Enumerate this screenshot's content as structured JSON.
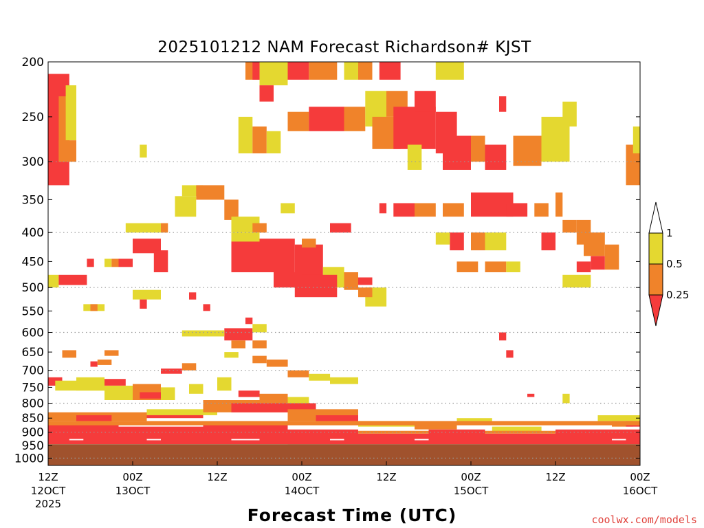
{
  "colors": {
    "ri_lt_025": "#f53b3b",
    "ri_025_05": "#f0832a",
    "ri_05_1": "#e4d830",
    "ground": "#a0522d",
    "grid": "#9a9a9a",
    "credit": "#e0403a"
  },
  "credit": "coolwx.com/models",
  "chart_data": {
    "type": "heatmap",
    "title": "2025101212 NAM Forecast Richardson# KJST",
    "xlabel": "Forecast Time (UTC)",
    "ylabel": "",
    "y_scale": "log",
    "y_inverted": true,
    "ylim": [
      1030,
      200
    ],
    "xlim": [
      0,
      84
    ],
    "grid": "dotted horizontal at pressure levels",
    "x_ticks": [
      {
        "hour": 0,
        "label": "12Z",
        "sub": "12OCT",
        "sub2": "2025"
      },
      {
        "hour": 12,
        "label": "00Z",
        "sub": "13OCT",
        "sub2": ""
      },
      {
        "hour": 24,
        "label": "12Z",
        "sub": "",
        "sub2": ""
      },
      {
        "hour": 36,
        "label": "00Z",
        "sub": "14OCT",
        "sub2": ""
      },
      {
        "hour": 48,
        "label": "12Z",
        "sub": "",
        "sub2": ""
      },
      {
        "hour": 60,
        "label": "00Z",
        "sub": "15OCT",
        "sub2": ""
      },
      {
        "hour": 72,
        "label": "12Z",
        "sub": "",
        "sub2": ""
      },
      {
        "hour": 84,
        "label": "00Z",
        "sub": "16OCT",
        "sub2": ""
      }
    ],
    "y_ticks": [
      "200",
      "250",
      "300",
      "350",
      "400",
      "450",
      "500",
      "550",
      "600",
      "650",
      "700",
      "750",
      "800",
      "850",
      "900",
      "950",
      "1000"
    ],
    "legend": {
      "placement": "right",
      "labels": [
        "1",
        "0.5",
        "0.25"
      ],
      "categories": [
        "Ri < 0.25",
        "0.25 - 0.5",
        "0.5 - 1"
      ]
    },
    "ground_below_hpa": 945,
    "cells": [
      {
        "h0": 0,
        "h1": 3,
        "p0": 210,
        "p1": 330,
        "c": "r"
      },
      {
        "h0": 1.5,
        "h1": 3,
        "p0": 230,
        "p1": 300,
        "c": "o"
      },
      {
        "h0": 2.5,
        "h1": 4,
        "p0": 220,
        "p1": 275,
        "c": "y"
      },
      {
        "h0": 1.5,
        "h1": 4,
        "p0": 275,
        "p1": 300,
        "c": "o"
      },
      {
        "h0": 13,
        "h1": 14,
        "p0": 280,
        "p1": 295,
        "c": "y"
      },
      {
        "h0": 28,
        "h1": 31,
        "p0": 200,
        "p1": 215,
        "c": "o"
      },
      {
        "h0": 29,
        "h1": 30,
        "p0": 200,
        "p1": 215,
        "c": "r"
      },
      {
        "h0": 30,
        "h1": 34,
        "p0": 200,
        "p1": 220,
        "c": "y"
      },
      {
        "h0": 34,
        "h1": 37,
        "p0": 200,
        "p1": 215,
        "c": "r"
      },
      {
        "h0": 37,
        "h1": 41,
        "p0": 200,
        "p1": 215,
        "c": "o"
      },
      {
        "h0": 30,
        "h1": 32,
        "p0": 220,
        "p1": 235,
        "c": "r"
      },
      {
        "h0": 42,
        "h1": 44,
        "p0": 200,
        "p1": 215,
        "c": "y"
      },
      {
        "h0": 44,
        "h1": 46,
        "p0": 200,
        "p1": 215,
        "c": "o"
      },
      {
        "h0": 47,
        "h1": 50,
        "p0": 200,
        "p1": 215,
        "c": "r"
      },
      {
        "h0": 55,
        "h1": 59,
        "p0": 200,
        "p1": 215,
        "c": "y"
      },
      {
        "h0": 34,
        "h1": 37,
        "p0": 245,
        "p1": 265,
        "c": "o"
      },
      {
        "h0": 37,
        "h1": 42,
        "p0": 240,
        "p1": 265,
        "c": "r"
      },
      {
        "h0": 42,
        "h1": 45,
        "p0": 240,
        "p1": 265,
        "c": "o"
      },
      {
        "h0": 45,
        "h1": 48,
        "p0": 225,
        "p1": 260,
        "c": "y"
      },
      {
        "h0": 46,
        "h1": 50,
        "p0": 250,
        "p1": 285,
        "c": "o"
      },
      {
        "h0": 48,
        "h1": 51,
        "p0": 225,
        "p1": 250,
        "c": "o"
      },
      {
        "h0": 49,
        "h1": 55,
        "p0": 240,
        "p1": 285,
        "c": "r"
      },
      {
        "h0": 55,
        "h1": 58,
        "p0": 245,
        "p1": 290,
        "c": "r"
      },
      {
        "h0": 52,
        "h1": 55,
        "p0": 225,
        "p1": 245,
        "c": "r"
      },
      {
        "h0": 51,
        "h1": 53,
        "p0": 280,
        "p1": 310,
        "c": "y"
      },
      {
        "h0": 27,
        "h1": 29,
        "p0": 250,
        "p1": 290,
        "c": "y"
      },
      {
        "h0": 29,
        "h1": 31,
        "p0": 260,
        "p1": 290,
        "c": "o"
      },
      {
        "h0": 31,
        "h1": 33,
        "p0": 265,
        "p1": 290,
        "c": "y"
      },
      {
        "h0": 56,
        "h1": 60,
        "p0": 270,
        "p1": 310,
        "c": "r"
      },
      {
        "h0": 60,
        "h1": 62,
        "p0": 270,
        "p1": 300,
        "c": "o"
      },
      {
        "h0": 62,
        "h1": 65,
        "p0": 280,
        "p1": 310,
        "c": "r"
      },
      {
        "h0": 64,
        "h1": 65,
        "p0": 230,
        "p1": 245,
        "c": "r"
      },
      {
        "h0": 66,
        "h1": 70,
        "p0": 270,
        "p1": 305,
        "c": "o"
      },
      {
        "h0": 70,
        "h1": 74,
        "p0": 250,
        "p1": 300,
        "c": "y"
      },
      {
        "h0": 73,
        "h1": 75,
        "p0": 235,
        "p1": 260,
        "c": "y"
      },
      {
        "h0": 82,
        "h1": 84,
        "p0": 280,
        "p1": 330,
        "c": "o"
      },
      {
        "h0": 83,
        "h1": 84,
        "p0": 260,
        "p1": 290,
        "c": "y"
      },
      {
        "h0": 19,
        "h1": 22,
        "p0": 330,
        "p1": 345,
        "c": "y"
      },
      {
        "h0": 21,
        "h1": 25,
        "p0": 330,
        "p1": 350,
        "c": "o"
      },
      {
        "h0": 18,
        "h1": 21,
        "p0": 345,
        "p1": 375,
        "c": "y"
      },
      {
        "h0": 25,
        "h1": 27,
        "p0": 350,
        "p1": 380,
        "c": "o"
      },
      {
        "h0": 26,
        "h1": 30,
        "p0": 375,
        "p1": 400,
        "c": "y"
      },
      {
        "h0": 29,
        "h1": 31,
        "p0": 385,
        "p1": 400,
        "c": "o"
      },
      {
        "h0": 33,
        "h1": 35,
        "p0": 355,
        "p1": 370,
        "c": "y"
      },
      {
        "h0": 40,
        "h1": 43,
        "p0": 385,
        "p1": 400,
        "c": "r"
      },
      {
        "h0": 47,
        "h1": 48,
        "p0": 355,
        "p1": 370,
        "c": "r"
      },
      {
        "h0": 49,
        "h1": 52,
        "p0": 355,
        "p1": 375,
        "c": "r"
      },
      {
        "h0": 52,
        "h1": 55,
        "p0": 355,
        "p1": 375,
        "c": "o"
      },
      {
        "h0": 56,
        "h1": 59,
        "p0": 355,
        "p1": 375,
        "c": "o"
      },
      {
        "h0": 60,
        "h1": 66,
        "p0": 340,
        "p1": 375,
        "c": "r"
      },
      {
        "h0": 65,
        "h1": 68,
        "p0": 355,
        "p1": 375,
        "c": "r"
      },
      {
        "h0": 69,
        "h1": 71,
        "p0": 355,
        "p1": 375,
        "c": "o"
      },
      {
        "h0": 72,
        "h1": 73,
        "p0": 340,
        "p1": 375,
        "c": "o"
      },
      {
        "h0": 11,
        "h1": 16,
        "p0": 385,
        "p1": 400,
        "c": "y"
      },
      {
        "h0": 16,
        "h1": 17,
        "p0": 385,
        "p1": 400,
        "c": "o"
      },
      {
        "h0": 12,
        "h1": 16,
        "p0": 410,
        "p1": 435,
        "c": "r"
      },
      {
        "h0": 15,
        "h1": 17,
        "p0": 430,
        "p1": 470,
        "c": "r"
      },
      {
        "h0": 26,
        "h1": 35,
        "p0": 410,
        "p1": 470,
        "c": "r"
      },
      {
        "h0": 35,
        "h1": 39,
        "p0": 420,
        "p1": 480,
        "c": "r"
      },
      {
        "h0": 26,
        "h1": 30,
        "p0": 400,
        "p1": 415,
        "c": "y"
      },
      {
        "h0": 36,
        "h1": 38,
        "p0": 410,
        "p1": 425,
        "c": "o"
      },
      {
        "h0": 39,
        "h1": 42,
        "p0": 460,
        "p1": 500,
        "c": "y"
      },
      {
        "h0": 42,
        "h1": 44,
        "p0": 470,
        "p1": 505,
        "c": "o"
      },
      {
        "h0": 35,
        "h1": 41,
        "p0": 475,
        "p1": 520,
        "c": "r"
      },
      {
        "h0": 32,
        "h1": 36,
        "p0": 470,
        "p1": 500,
        "c": "r"
      },
      {
        "h0": 44,
        "h1": 46,
        "p0": 480,
        "p1": 495,
        "c": "r"
      },
      {
        "h0": 45,
        "h1": 48,
        "p0": 500,
        "p1": 540,
        "c": "y"
      },
      {
        "h0": 44,
        "h1": 46,
        "p0": 500,
        "p1": 520,
        "c": "o"
      },
      {
        "h0": 57,
        "h1": 59,
        "p0": 400,
        "p1": 430,
        "c": "r"
      },
      {
        "h0": 55,
        "h1": 57,
        "p0": 400,
        "p1": 420,
        "c": "y"
      },
      {
        "h0": 60,
        "h1": 62,
        "p0": 400,
        "p1": 430,
        "c": "o"
      },
      {
        "h0": 62,
        "h1": 65,
        "p0": 400,
        "p1": 430,
        "c": "y"
      },
      {
        "h0": 70,
        "h1": 72,
        "p0": 400,
        "p1": 430,
        "c": "r"
      },
      {
        "h0": 73,
        "h1": 75,
        "p0": 380,
        "p1": 400,
        "c": "o"
      },
      {
        "h0": 75,
        "h1": 77,
        "p0": 380,
        "p1": 420,
        "c": "o"
      },
      {
        "h0": 76,
        "h1": 79,
        "p0": 400,
        "p1": 440,
        "c": "o"
      },
      {
        "h0": 77,
        "h1": 79,
        "p0": 440,
        "p1": 465,
        "c": "r"
      },
      {
        "h0": 79,
        "h1": 81,
        "p0": 420,
        "p1": 465,
        "c": "o"
      },
      {
        "h0": 75,
        "h1": 77,
        "p0": 450,
        "p1": 470,
        "c": "r"
      },
      {
        "h0": 58,
        "h1": 61,
        "p0": 450,
        "p1": 470,
        "c": "o"
      },
      {
        "h0": 62,
        "h1": 65,
        "p0": 450,
        "p1": 470,
        "c": "o"
      },
      {
        "h0": 65,
        "h1": 67,
        "p0": 450,
        "p1": 470,
        "c": "y"
      },
      {
        "h0": 73,
        "h1": 77,
        "p0": 475,
        "p1": 500,
        "c": "y"
      },
      {
        "h0": 0,
        "h1": 1.5,
        "p0": 475,
        "p1": 500,
        "c": "y"
      },
      {
        "h0": 1.5,
        "h1": 5.5,
        "p0": 475,
        "p1": 495,
        "c": "r"
      },
      {
        "h0": 5.5,
        "h1": 6.5,
        "p0": 445,
        "p1": 460,
        "c": "r"
      },
      {
        "h0": 8,
        "h1": 9,
        "p0": 445,
        "p1": 460,
        "c": "y"
      },
      {
        "h0": 9,
        "h1": 10,
        "p0": 445,
        "p1": 460,
        "c": "o"
      },
      {
        "h0": 10,
        "h1": 12,
        "p0": 445,
        "p1": 460,
        "c": "r"
      },
      {
        "h0": 12,
        "h1": 16,
        "p0": 505,
        "p1": 525,
        "c": "y"
      },
      {
        "h0": 13,
        "h1": 14,
        "p0": 525,
        "p1": 545,
        "c": "r"
      },
      {
        "h0": 5,
        "h1": 8,
        "p0": 535,
        "p1": 550,
        "c": "y"
      },
      {
        "h0": 6,
        "h1": 7,
        "p0": 535,
        "p1": 550,
        "c": "o"
      },
      {
        "h0": 20,
        "h1": 21,
        "p0": 510,
        "p1": 525,
        "c": "r"
      },
      {
        "h0": 22,
        "h1": 23,
        "p0": 535,
        "p1": 550,
        "c": "r"
      },
      {
        "h0": 28,
        "h1": 29,
        "p0": 565,
        "p1": 580,
        "c": "r"
      },
      {
        "h0": 25,
        "h1": 29,
        "p0": 590,
        "p1": 620,
        "c": "r"
      },
      {
        "h0": 26,
        "h1": 28,
        "p0": 620,
        "p1": 640,
        "c": "o"
      },
      {
        "h0": 29,
        "h1": 31,
        "p0": 620,
        "p1": 640,
        "c": "o"
      },
      {
        "h0": 19,
        "h1": 25,
        "p0": 595,
        "p1": 610,
        "c": "y"
      },
      {
        "h0": 29,
        "h1": 31,
        "p0": 580,
        "p1": 600,
        "c": "y"
      },
      {
        "h0": 2,
        "h1": 4,
        "p0": 645,
        "p1": 665,
        "c": "o"
      },
      {
        "h0": 8,
        "h1": 10,
        "p0": 645,
        "p1": 660,
        "c": "o"
      },
      {
        "h0": 6,
        "h1": 7,
        "p0": 675,
        "p1": 690,
        "c": "r"
      },
      {
        "h0": 7,
        "h1": 9,
        "p0": 670,
        "p1": 685,
        "c": "o"
      },
      {
        "h0": 16,
        "h1": 19,
        "p0": 695,
        "p1": 710,
        "c": "r"
      },
      {
        "h0": 19,
        "h1": 21,
        "p0": 680,
        "p1": 700,
        "c": "o"
      },
      {
        "h0": 25,
        "h1": 27,
        "p0": 650,
        "p1": 665,
        "c": "y"
      },
      {
        "h0": 29,
        "h1": 31,
        "p0": 660,
        "p1": 680,
        "c": "o"
      },
      {
        "h0": 31,
        "h1": 34,
        "p0": 670,
        "p1": 690,
        "c": "o"
      },
      {
        "h0": 34,
        "h1": 37,
        "p0": 700,
        "p1": 720,
        "c": "o"
      },
      {
        "h0": 37,
        "h1": 40,
        "p0": 710,
        "p1": 730,
        "c": "y"
      },
      {
        "h0": 40,
        "h1": 44,
        "p0": 720,
        "p1": 740,
        "c": "y"
      },
      {
        "h0": 65,
        "h1": 66,
        "p0": 645,
        "p1": 665,
        "c": "r"
      },
      {
        "h0": 64,
        "h1": 65,
        "p0": 600,
        "p1": 620,
        "c": "r"
      },
      {
        "h0": 0,
        "h1": 2,
        "p0": 720,
        "p1": 745,
        "c": "r"
      },
      {
        "h0": 1,
        "h1": 4,
        "p0": 730,
        "p1": 760,
        "c": "y"
      },
      {
        "h0": 4,
        "h1": 8,
        "p0": 720,
        "p1": 760,
        "c": "y"
      },
      {
        "h0": 8,
        "h1": 11,
        "p0": 725,
        "p1": 745,
        "c": "r"
      },
      {
        "h0": 8,
        "h1": 12,
        "p0": 745,
        "p1": 790,
        "c": "y"
      },
      {
        "h0": 12,
        "h1": 16,
        "p0": 740,
        "p1": 790,
        "c": "o"
      },
      {
        "h0": 13,
        "h1": 16,
        "p0": 765,
        "p1": 785,
        "c": "r"
      },
      {
        "h0": 16,
        "h1": 18,
        "p0": 750,
        "p1": 790,
        "c": "y"
      },
      {
        "h0": 20,
        "h1": 22,
        "p0": 740,
        "p1": 770,
        "c": "y"
      },
      {
        "h0": 24,
        "h1": 26,
        "p0": 720,
        "p1": 760,
        "c": "y"
      },
      {
        "h0": 27,
        "h1": 30,
        "p0": 760,
        "p1": 780,
        "c": "r"
      },
      {
        "h0": 30,
        "h1": 34,
        "p0": 770,
        "p1": 790,
        "c": "o"
      },
      {
        "h0": 26,
        "h1": 28,
        "p0": 790,
        "p1": 810,
        "c": "o"
      },
      {
        "h0": 34,
        "h1": 37,
        "p0": 780,
        "p1": 800,
        "c": "y"
      },
      {
        "h0": 0,
        "h1": 14,
        "p0": 830,
        "p1": 860,
        "c": "o"
      },
      {
        "h0": 4,
        "h1": 9,
        "p0": 840,
        "p1": 860,
        "c": "r"
      },
      {
        "h0": 14,
        "h1": 22,
        "p0": 830,
        "p1": 850,
        "c": "r"
      },
      {
        "h0": 14,
        "h1": 24,
        "p0": 820,
        "p1": 840,
        "c": "y"
      },
      {
        "h0": 22,
        "h1": 34,
        "p0": 790,
        "p1": 830,
        "c": "o"
      },
      {
        "h0": 26,
        "h1": 38,
        "p0": 800,
        "p1": 830,
        "c": "r"
      },
      {
        "h0": 34,
        "h1": 44,
        "p0": 820,
        "p1": 860,
        "c": "o"
      },
      {
        "h0": 38,
        "h1": 44,
        "p0": 840,
        "p1": 860,
        "c": "r"
      },
      {
        "h0": 44,
        "h1": 52,
        "p0": 860,
        "p1": 880,
        "c": "y"
      },
      {
        "h0": 52,
        "h1": 58,
        "p0": 870,
        "p1": 890,
        "c": "o"
      },
      {
        "h0": 58,
        "h1": 63,
        "p0": 850,
        "p1": 870,
        "c": "y"
      },
      {
        "h0": 63,
        "h1": 70,
        "p0": 880,
        "p1": 900,
        "c": "y"
      },
      {
        "h0": 78,
        "h1": 84,
        "p0": 840,
        "p1": 860,
        "c": "y"
      },
      {
        "h0": 80,
        "h1": 83,
        "p0": 860,
        "p1": 880,
        "c": "o"
      },
      {
        "h0": 82,
        "h1": 84,
        "p0": 860,
        "p1": 880,
        "c": "r"
      },
      {
        "h0": 68,
        "h1": 69,
        "p0": 770,
        "p1": 780,
        "c": "r"
      },
      {
        "h0": 73,
        "h1": 74,
        "p0": 770,
        "p1": 800,
        "c": "y"
      },
      {
        "h0": 0,
        "h1": 10,
        "p0": 870,
        "p1": 945,
        "c": "r"
      },
      {
        "h0": 10,
        "h1": 22,
        "p0": 880,
        "p1": 945,
        "c": "r"
      },
      {
        "h0": 22,
        "h1": 34,
        "p0": 870,
        "p1": 945,
        "c": "r"
      },
      {
        "h0": 34,
        "h1": 44,
        "p0": 890,
        "p1": 945,
        "c": "r"
      },
      {
        "h0": 44,
        "h1": 54,
        "p0": 905,
        "p1": 945,
        "c": "r"
      },
      {
        "h0": 54,
        "h1": 62,
        "p0": 890,
        "p1": 945,
        "c": "r"
      },
      {
        "h0": 62,
        "h1": 72,
        "p0": 905,
        "p1": 945,
        "c": "r"
      },
      {
        "h0": 72,
        "h1": 84,
        "p0": 890,
        "p1": 945,
        "c": "r"
      },
      {
        "h0": 0,
        "h1": 84,
        "p0": 860,
        "p1": 875,
        "c": "o"
      },
      {
        "h0": 44,
        "h1": 54,
        "p0": 895,
        "p1": 905,
        "c": "o"
      },
      {
        "h0": 62,
        "h1": 72,
        "p0": 895,
        "p1": 905,
        "c": "o"
      },
      {
        "h0": 3,
        "h1": 5,
        "p0": 925,
        "p1": 930,
        "c": "w"
      },
      {
        "h0": 14,
        "h1": 16,
        "p0": 925,
        "p1": 930,
        "c": "w"
      },
      {
        "h0": 26,
        "h1": 30,
        "p0": 925,
        "p1": 930,
        "c": "w"
      },
      {
        "h0": 40,
        "h1": 42,
        "p0": 925,
        "p1": 930,
        "c": "w"
      },
      {
        "h0": 52,
        "h1": 54,
        "p0": 925,
        "p1": 930,
        "c": "w"
      },
      {
        "h0": 80,
        "h1": 82,
        "p0": 925,
        "p1": 930,
        "c": "w"
      }
    ]
  }
}
